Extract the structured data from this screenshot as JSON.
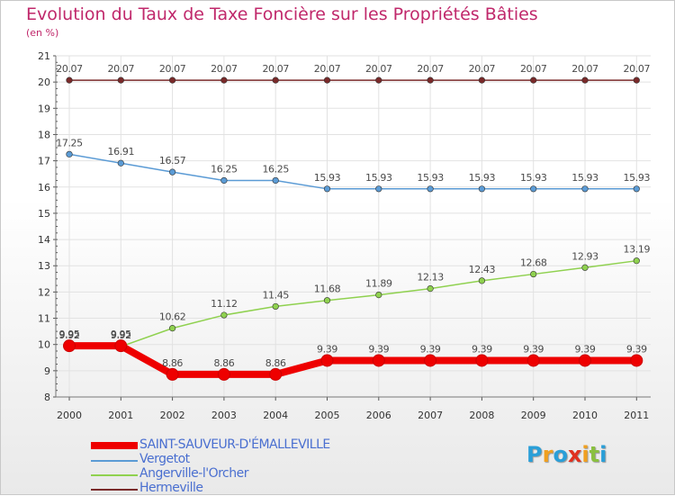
{
  "title": "Evolution du Taux de Taxe Foncière sur les Propriétés Bâties",
  "unit_label": "(en %)",
  "chart_data": {
    "type": "line",
    "title": "Evolution du Taux de Taxe Foncière sur les Propriétés Bâties",
    "subtitle": "(en %)",
    "xlabel": "",
    "ylabel": "",
    "x": [
      "2000",
      "2001",
      "2002",
      "2003",
      "2004",
      "2005",
      "2006",
      "2007",
      "2008",
      "2009",
      "2010",
      "2011"
    ],
    "ylim": [
      8,
      21
    ],
    "yticks": [
      "8",
      "9",
      "10",
      "11",
      "12",
      "13",
      "14",
      "15",
      "16",
      "17",
      "18",
      "19",
      "20",
      "21"
    ],
    "grid": true,
    "legend_position": "bottom-left",
    "series": [
      {
        "name": "Hermeville",
        "color": "#7a2a2a",
        "values": [
          20.07,
          20.07,
          20.07,
          20.07,
          20.07,
          20.07,
          20.07,
          20.07,
          20.07,
          20.07,
          20.07,
          20.07
        ],
        "labels": [
          "20.07",
          "20.07",
          "20.07",
          "20.07",
          "20.07",
          "20.07",
          "20.07",
          "20.07",
          "20.07",
          "20.07",
          "20.07",
          "20.07"
        ]
      },
      {
        "name": "Vergetot",
        "color": "#5b9bd5",
        "values": [
          17.25,
          16.91,
          16.57,
          16.25,
          16.25,
          15.93,
          15.93,
          15.93,
          15.93,
          15.93,
          15.93,
          15.93
        ],
        "labels": [
          "17.25",
          "16.91",
          "16.57",
          "16.25",
          "16.25",
          "15.93",
          "15.93",
          "15.93",
          "15.93",
          "15.93",
          "15.93",
          "15.93"
        ]
      },
      {
        "name": "Angerville-l'Orcher",
        "color": "#8fd14f",
        "values": [
          9.92,
          9.92,
          10.62,
          11.12,
          11.45,
          11.68,
          11.89,
          12.13,
          12.43,
          12.68,
          12.93,
          13.19
        ],
        "labels": [
          "9.92",
          "9.92",
          "10.62",
          "11.12",
          "11.45",
          "11.68",
          "11.89",
          "12.13",
          "12.43",
          "12.68",
          "12.93",
          "13.19"
        ]
      },
      {
        "name": "SAINT-SAUVEUR-D'ÉMALLEVILLE",
        "color": "#ee0000",
        "values": [
          9.95,
          9.95,
          8.86,
          8.86,
          8.86,
          9.39,
          9.39,
          9.39,
          9.39,
          9.39,
          9.39,
          9.39
        ],
        "labels": [
          "9.95",
          "9.95",
          "8.86",
          "8.86",
          "8.86",
          "9.39",
          "9.39",
          "9.39",
          "9.39",
          "9.39",
          "9.39",
          "9.39"
        ]
      }
    ],
    "legend": [
      {
        "name": "SAINT-SAUVEUR-D'ÉMALLEVILLE",
        "color": "#ee0000"
      },
      {
        "name": "Vergetot",
        "color": "#5b9bd5"
      },
      {
        "name": "Angerville-l'Orcher",
        "color": "#8fd14f"
      },
      {
        "name": "Hermeville",
        "color": "#7a2a2a"
      }
    ]
  },
  "logo": {
    "letters": [
      "P",
      "r",
      "o",
      "x",
      "i",
      "t",
      "i"
    ],
    "colors": [
      "#2a9fd8",
      "#f0a020",
      "#2a9fd8",
      "#e03020",
      "#f0a020",
      "#8ac040",
      "#2a9fd8"
    ]
  }
}
